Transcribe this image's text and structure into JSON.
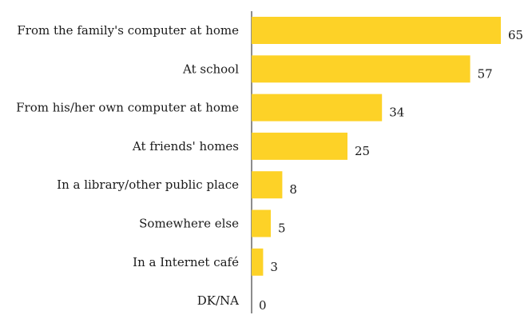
{
  "chart_data": {
    "type": "bar",
    "orientation": "horizontal",
    "title": "",
    "xlabel": "",
    "ylabel": "",
    "categories": [
      "From the family's computer at home",
      "At school",
      "From his/her own computer at home",
      "At friends' homes",
      "In a library/other public place",
      "Somewhere else",
      "In a Internet café",
      "DK/NA"
    ],
    "values": [
      65,
      57,
      34,
      25,
      8,
      5,
      3,
      0
    ],
    "xlim": [
      0,
      70
    ],
    "grid": false,
    "legend": "none",
    "bar_color": "#FDD227",
    "axis_color": "#1a1a1a"
  }
}
